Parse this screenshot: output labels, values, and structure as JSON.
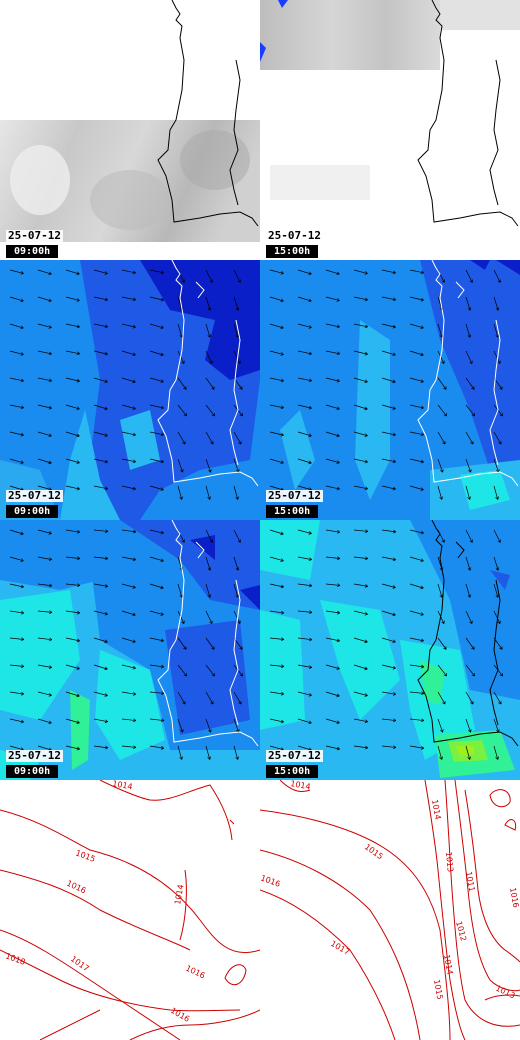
{
  "panels": [
    {
      "id": "cloud-0900",
      "type": "cloud",
      "date": "25-07-12",
      "time": "09:00h"
    },
    {
      "id": "cloud-1500",
      "type": "cloud",
      "date": "25-07-12",
      "time": "15:00h"
    },
    {
      "id": "wind-a-0900",
      "type": "wind",
      "date": "25-07-12",
      "time": "09:00h"
    },
    {
      "id": "wind-a-1500",
      "type": "wind",
      "date": "25-07-12",
      "time": "15:00h"
    },
    {
      "id": "wind-b-0900",
      "type": "wind",
      "date": "25-07-12",
      "time": "09:00h"
    },
    {
      "id": "wind-b-1500",
      "type": "wind",
      "date": "25-07-12",
      "time": "15:00h"
    },
    {
      "id": "pressure-0900",
      "type": "pressure"
    },
    {
      "id": "pressure-1500",
      "type": "pressure"
    }
  ],
  "isobars_left": [
    "1014",
    "1015",
    "1016",
    "1014",
    "1017",
    "1018",
    "1016",
    "1016"
  ],
  "isobars_right": [
    "1014",
    "1015",
    "1016",
    "1014",
    "1013",
    "1011",
    "1016",
    "1012",
    "1017",
    "1014",
    "1015",
    "1013"
  ],
  "colors": {
    "wind_deep": "#0a1fc8",
    "wind_dark": "#1f5ae6",
    "wind_mid": "#1a8cf0",
    "wind_light": "#2ab8f2",
    "wind_cyan": "#1ee6e6",
    "wind_green": "#30f098",
    "wind_lime": "#7af040",
    "isobar": "#cc0000",
    "coast": "#000000"
  }
}
